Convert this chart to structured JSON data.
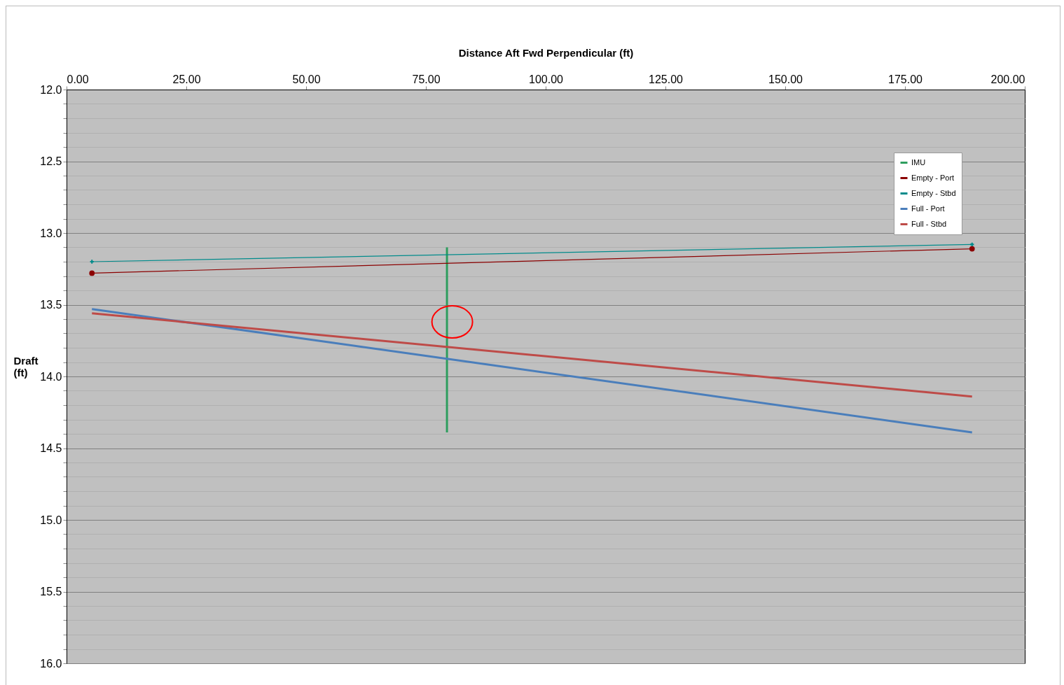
{
  "chart_data": {
    "type": "line",
    "xlabel": "Distance Aft Fwd Perpendicular (ft)",
    "ylabel": "Draft (ft)",
    "xlim": [
      0,
      200
    ],
    "xticks": [
      {
        "value": 0,
        "label": "0.00"
      },
      {
        "value": 25,
        "label": "25.00"
      },
      {
        "value": 50,
        "label": "50.00"
      },
      {
        "value": 75,
        "label": "75.00"
      },
      {
        "value": 100,
        "label": "100.00"
      },
      {
        "value": 125,
        "label": "125.00"
      },
      {
        "value": 150,
        "label": "150.00"
      },
      {
        "value": 175,
        "label": "175.00"
      },
      {
        "value": 200,
        "label": "200.00"
      }
    ],
    "ylim": [
      16,
      12
    ],
    "yticks": [
      {
        "value": 12,
        "label": "12.0"
      },
      {
        "value": 12.1,
        "label": null
      },
      {
        "value": 12.2,
        "label": null
      },
      {
        "value": 12.3,
        "label": null
      },
      {
        "value": 12.4,
        "label": null
      },
      {
        "value": 12.5,
        "label": "12.5"
      },
      {
        "value": 12.6,
        "label": null
      },
      {
        "value": 12.7,
        "label": null
      },
      {
        "value": 12.8,
        "label": null
      },
      {
        "value": 12.9,
        "label": null
      },
      {
        "value": 13,
        "label": "13.0"
      },
      {
        "value": 13.1,
        "label": null
      },
      {
        "value": 13.2,
        "label": null
      },
      {
        "value": 13.3,
        "label": null
      },
      {
        "value": 13.4,
        "label": null
      },
      {
        "value": 13.5,
        "label": "13.5"
      },
      {
        "value": 13.6,
        "label": null
      },
      {
        "value": 13.7,
        "label": null
      },
      {
        "value": 13.8,
        "label": null
      },
      {
        "value": 13.9,
        "label": null
      },
      {
        "value": 14,
        "label": "14.0"
      },
      {
        "value": 14.1,
        "label": null
      },
      {
        "value": 14.2,
        "label": null
      },
      {
        "value": 14.3,
        "label": null
      },
      {
        "value": 14.4,
        "label": null
      },
      {
        "value": 14.5,
        "label": "14.5"
      },
      {
        "value": 14.6,
        "label": null
      },
      {
        "value": 14.7,
        "label": null
      },
      {
        "value": 14.8,
        "label": null
      },
      {
        "value": 14.9,
        "label": null
      },
      {
        "value": 15,
        "label": "15.0"
      },
      {
        "value": 15.1,
        "label": null
      },
      {
        "value": 15.2,
        "label": null
      },
      {
        "value": 15.3,
        "label": null
      },
      {
        "value": 15.4,
        "label": null
      },
      {
        "value": 15.5,
        "label": "15.5"
      },
      {
        "value": 15.6,
        "label": null
      },
      {
        "value": 15.7,
        "label": null
      },
      {
        "value": 15.8,
        "label": null
      },
      {
        "value": 15.9,
        "label": null
      },
      {
        "value": 16,
        "label": "16.0"
      }
    ],
    "grid": "y",
    "legend": "top right",
    "series": [
      {
        "name": "IMU",
        "color": "#2e9e5e",
        "x": [
          79.4,
          79.4
        ],
        "values": [
          13.1,
          14.39
        ]
      },
      {
        "name": "Empty - Port",
        "color": "#8b0000",
        "marker": "circle",
        "x": [
          5.3,
          189
        ],
        "values": [
          13.28,
          13.11
        ]
      },
      {
        "name": "Empty - Stbd",
        "color": "#008b8b",
        "marker": "cross",
        "x": [
          5.3,
          189
        ],
        "values": [
          13.2,
          13.08
        ]
      },
      {
        "name": "Full - Port",
        "color": "#4a7ebb",
        "x": [
          5.3,
          189
        ],
        "values": [
          13.53,
          14.39
        ]
      },
      {
        "name": "Full - Stbd",
        "color": "#be4b48",
        "x": [
          5.3,
          189
        ],
        "values": [
          13.56,
          14.14
        ]
      }
    ]
  }
}
